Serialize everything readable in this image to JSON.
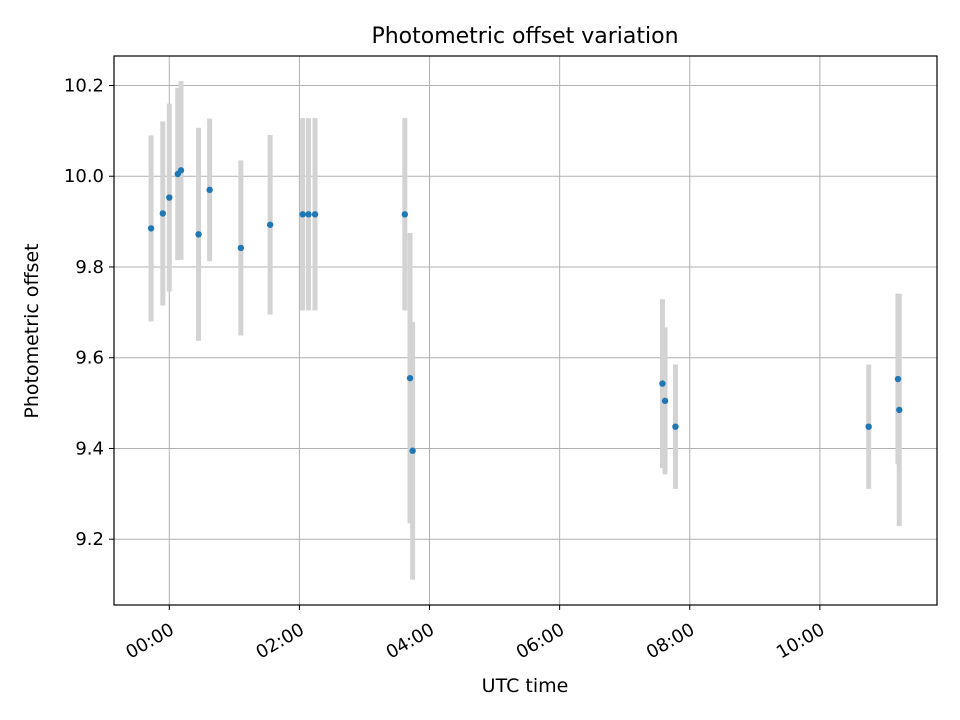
{
  "chart_data": {
    "type": "scatter",
    "title": "Photometric offset variation",
    "xlabel": "UTC time",
    "ylabel": "Photometric offset",
    "x_unit": "time of day (hours)",
    "xlim": [
      -0.85,
      11.8
    ],
    "ylim": [
      9.055,
      10.265
    ],
    "grid": true,
    "x_ticks": [
      {
        "value": 0,
        "label": "00:00"
      },
      {
        "value": 2,
        "label": "02:00"
      },
      {
        "value": 4,
        "label": "04:00"
      },
      {
        "value": 6,
        "label": "06:00"
      },
      {
        "value": 8,
        "label": "08:00"
      },
      {
        "value": 10,
        "label": "10:00"
      }
    ],
    "y_ticks": [
      {
        "value": 9.2,
        "label": "9.2"
      },
      {
        "value": 9.4,
        "label": "9.4"
      },
      {
        "value": 9.6,
        "label": "9.6"
      },
      {
        "value": 9.8,
        "label": "9.8"
      },
      {
        "value": 10.0,
        "label": "10.0"
      },
      {
        "value": 10.2,
        "label": "10.2"
      }
    ],
    "colors": {
      "points": "#1f77b4",
      "errorbars": "#d3d3d3"
    },
    "points": [
      {
        "x": -0.28,
        "y": 9.885,
        "yerr": 0.205
      },
      {
        "x": -0.1,
        "y": 9.918,
        "yerr": 0.203
      },
      {
        "x": 0.0,
        "y": 9.953,
        "yerr": 0.207
      },
      {
        "x": 0.13,
        "y": 10.005,
        "yerr": 0.19
      },
      {
        "x": 0.18,
        "y": 10.013,
        "yerr": 0.197
      },
      {
        "x": 0.45,
        "y": 9.872,
        "yerr": 0.235
      },
      {
        "x": 0.62,
        "y": 9.97,
        "yerr": 0.157
      },
      {
        "x": 1.1,
        "y": 9.842,
        "yerr": 0.193
      },
      {
        "x": 1.55,
        "y": 9.893,
        "yerr": 0.198
      },
      {
        "x": 2.05,
        "y": 9.916,
        "yerr": 0.212
      },
      {
        "x": 2.14,
        "y": 9.916,
        "yerr": 0.212
      },
      {
        "x": 2.24,
        "y": 9.916,
        "yerr": 0.212
      },
      {
        "x": 3.62,
        "y": 9.916,
        "yerr": 0.212
      },
      {
        "x": 3.7,
        "y": 9.555,
        "yerr": 0.32
      },
      {
        "x": 3.74,
        "y": 9.395,
        "yerr": 0.284
      },
      {
        "x": 7.58,
        "y": 9.543,
        "yerr": 0.186
      },
      {
        "x": 7.62,
        "y": 9.505,
        "yerr": 0.162
      },
      {
        "x": 7.78,
        "y": 9.448,
        "yerr": 0.137
      },
      {
        "x": 10.75,
        "y": 9.448,
        "yerr": 0.137
      },
      {
        "x": 11.2,
        "y": 9.553,
        "yerr": 0.188
      },
      {
        "x": 11.22,
        "y": 9.485,
        "yerr": 0.256
      }
    ]
  }
}
